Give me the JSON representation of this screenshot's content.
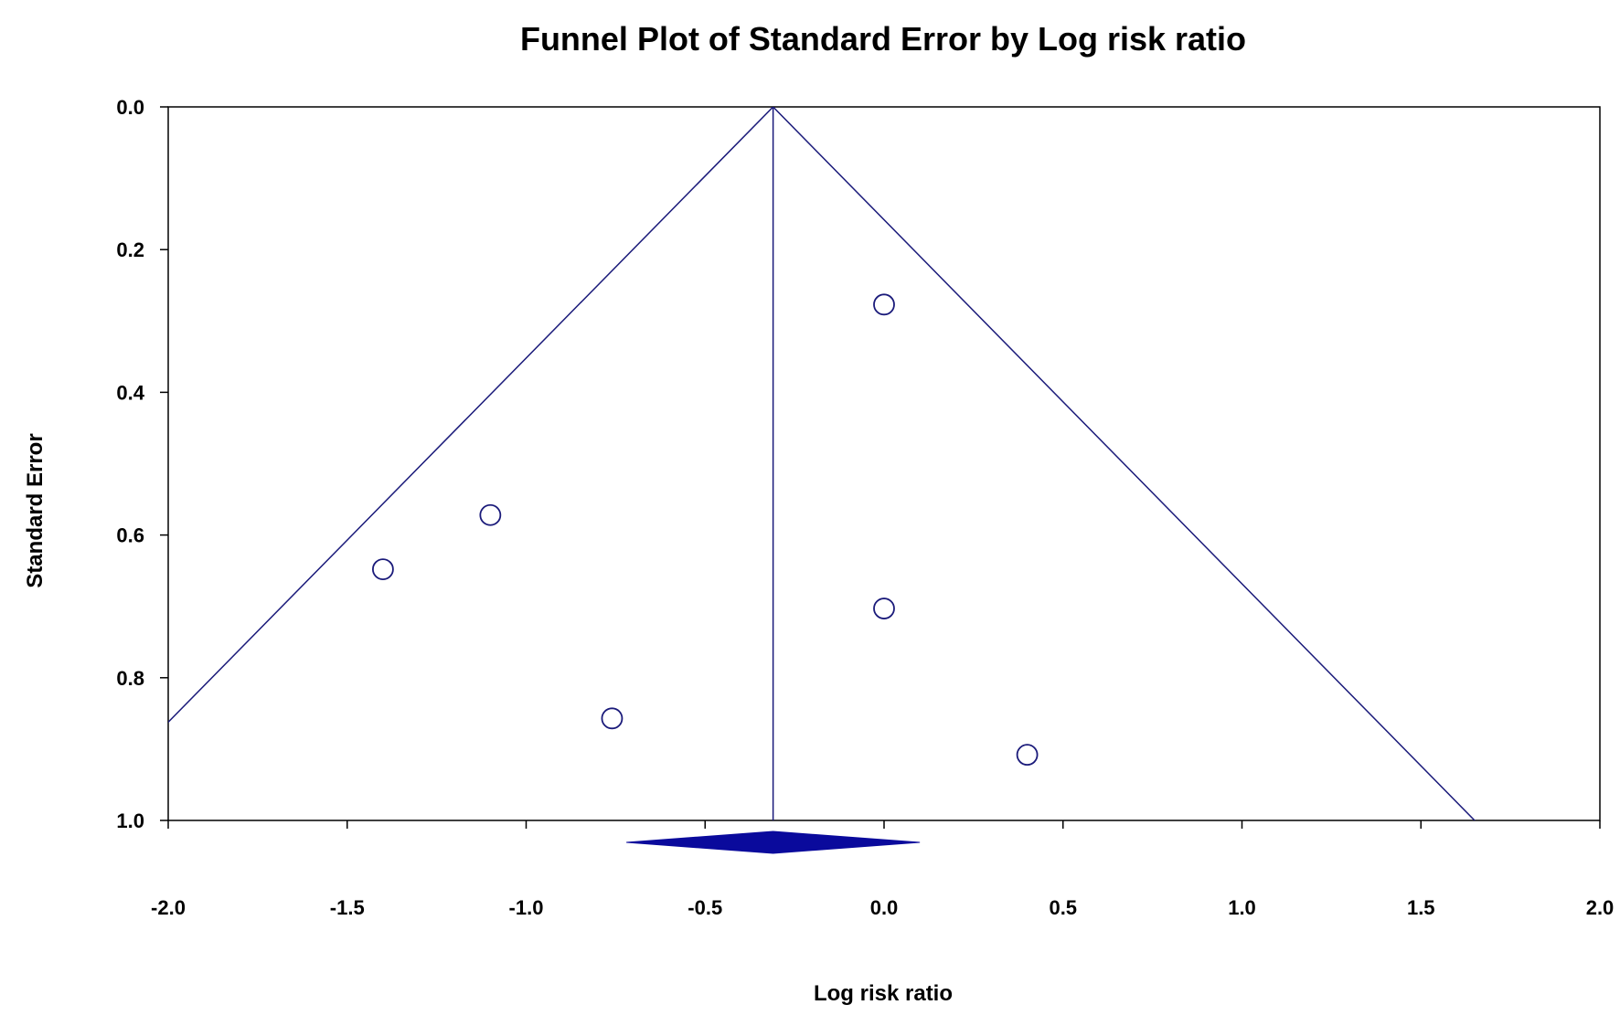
{
  "chart_data": {
    "type": "scatter",
    "title": "Funnel Plot of Standard Error by Log risk ratio",
    "xlabel": "Log risk ratio",
    "ylabel": "Standard Error",
    "xlim": [
      -2.0,
      2.0
    ],
    "ylim": [
      0.0,
      1.0
    ],
    "y_inverted": true,
    "x_ticks": [
      "-2.0",
      "-1.5",
      "-1.0",
      "-0.5",
      "0.0",
      "0.5",
      "1.0",
      "1.5",
      "2.0"
    ],
    "y_ticks": [
      "0.0",
      "0.2",
      "0.4",
      "0.6",
      "0.8",
      "1.0"
    ],
    "points": [
      {
        "x": 0.0,
        "y": 0.277
      },
      {
        "x": -1.1,
        "y": 0.572
      },
      {
        "x": -1.4,
        "y": 0.648
      },
      {
        "x": 0.0,
        "y": 0.703
      },
      {
        "x": -0.76,
        "y": 0.857
      },
      {
        "x": 0.4,
        "y": 0.908
      }
    ],
    "pooled_estimate": {
      "x": -0.31,
      "ci_low": -0.72,
      "ci_high": 0.1
    },
    "funnel": {
      "apex_x": -0.31,
      "z": 1.96
    },
    "grid": false,
    "colors": {
      "line": "#1a1a7a",
      "diamond": "#0a0a9c",
      "marker": "#1a1a7a",
      "axis": "#000000"
    }
  }
}
